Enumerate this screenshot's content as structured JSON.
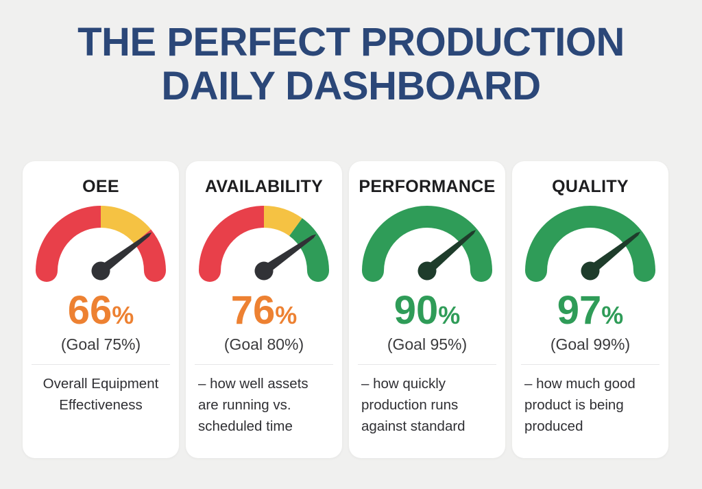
{
  "page": {
    "background": "#F0F0EF"
  },
  "title": {
    "line1": "THE PERFECT PRODUCTION",
    "line2": "DAILY DASHBOARD",
    "color": "#2B4778"
  },
  "palette": {
    "red": "#E8404A",
    "yellow": "#F5C243",
    "green": "#2F9C58",
    "orange": "#ED8132",
    "needle_dark": "#313236",
    "needle_green": "#1E3C2B",
    "card_bg": "#FFFFFF",
    "heading_text": "#1D1D1F",
    "goal_text": "#3A3A3C",
    "desc_text": "#2F2F33"
  },
  "chart_data": [
    {
      "type": "gauge",
      "title": "OEE",
      "value": 66,
      "unit": "%",
      "goal": 75,
      "goal_label": "(Goal 75%)",
      "range": [
        0,
        100
      ],
      "segments": [
        {
          "color": "red",
          "from": 0,
          "to": 50
        },
        {
          "color": "yellow",
          "from": 50,
          "to": 78
        },
        {
          "color": "red",
          "from": 78,
          "to": 100
        }
      ],
      "needle_deg": 37,
      "needle_color": "needle_dark",
      "value_color": "orange",
      "description": "Overall Equipment\nEffectiveness",
      "desc_align": "center"
    },
    {
      "type": "gauge",
      "title": "AVAILABILITY",
      "value": 76,
      "unit": "%",
      "goal": 80,
      "goal_label": "(Goal 80%)",
      "range": [
        0,
        100
      ],
      "segments": [
        {
          "color": "red",
          "from": 0,
          "to": 50
        },
        {
          "color": "yellow",
          "from": 50,
          "to": 70
        },
        {
          "color": "green",
          "from": 70,
          "to": 100
        }
      ],
      "needle_deg": 35,
      "needle_color": "needle_dark",
      "value_color": "orange",
      "description": "– how well assets\nare running vs.\nscheduled time",
      "desc_align": "left"
    },
    {
      "type": "gauge",
      "title": "PERFORMANCE",
      "value": 90,
      "unit": "%",
      "goal": 95,
      "goal_label": "(Goal 95%)",
      "range": [
        0,
        100
      ],
      "segments": [
        {
          "color": "green",
          "from": 0,
          "to": 100
        }
      ],
      "needle_deg": 40,
      "needle_color": "needle_green",
      "value_color": "green",
      "description": "– how quickly\nproduction runs\nagainst standard",
      "desc_align": "left"
    },
    {
      "type": "gauge",
      "title": "QUALITY",
      "value": 97,
      "unit": "%",
      "goal": 99,
      "goal_label": "(Goal 99%)",
      "range": [
        0,
        100
      ],
      "segments": [
        {
          "color": "green",
          "from": 0,
          "to": 100
        }
      ],
      "needle_deg": 38,
      "needle_color": "needle_green",
      "value_color": "green",
      "description": "– how much good\nproduct is being\nproduced",
      "desc_align": "left"
    }
  ]
}
